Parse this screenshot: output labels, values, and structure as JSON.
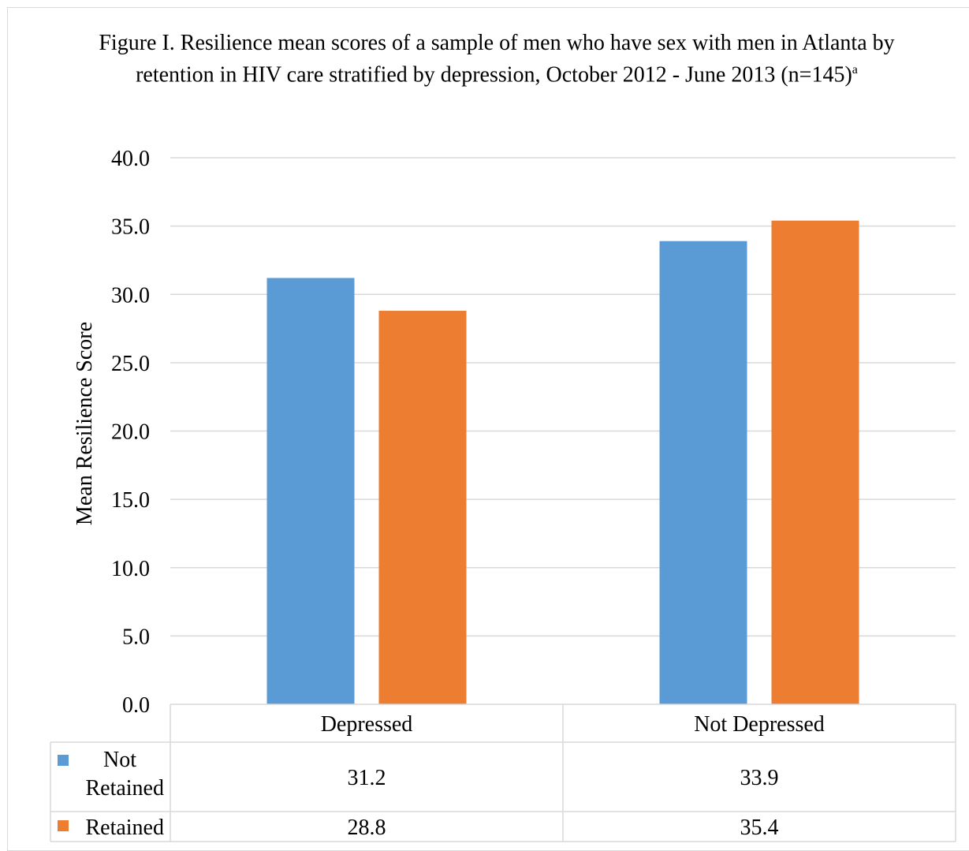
{
  "chart_data": {
    "type": "bar",
    "title_main": "Figure I.  Resilience mean scores of a sample of men who have sex with men in Atlanta by retention in HIV care stratified by depression, October 2012 - June 2013 (n=145)",
    "title_superscript": "a",
    "ylabel": "Mean Resilience Score",
    "xlabel": "",
    "ylim": [
      0,
      40
    ],
    "yticks": [
      "0.0",
      "5.0",
      "10.0",
      "15.0",
      "20.0",
      "25.0",
      "30.0",
      "35.0",
      "40.0"
    ],
    "categories": [
      "Depressed",
      "Not Depressed"
    ],
    "series": [
      {
        "name": "Not Retained",
        "values": [
          31.2,
          33.9
        ],
        "labels": [
          "31.2",
          "33.9"
        ],
        "color": "#5b9bd5"
      },
      {
        "name": "Retained",
        "values": [
          28.8,
          35.4
        ],
        "labels": [
          "28.8",
          "35.4"
        ],
        "color": "#ed7d31"
      }
    ],
    "grid": true,
    "legend": "data-table"
  }
}
